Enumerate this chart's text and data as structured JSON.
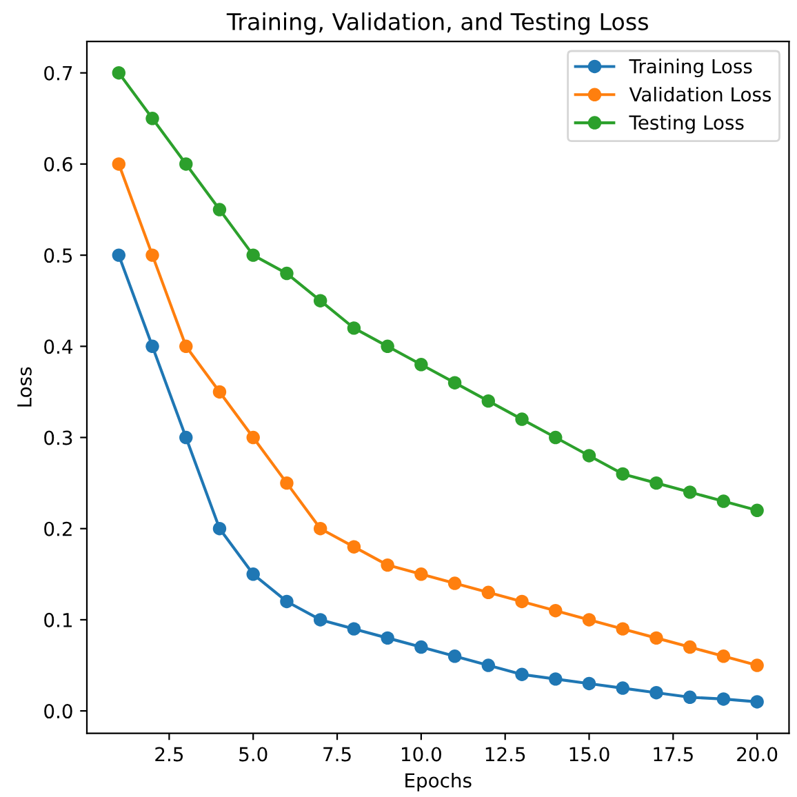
{
  "chart_data": {
    "type": "line",
    "title": "Training, Validation, and Testing Loss",
    "xlabel": "Epochs",
    "ylabel": "Loss",
    "x": [
      1,
      2,
      3,
      4,
      5,
      6,
      7,
      8,
      9,
      10,
      11,
      12,
      13,
      14,
      15,
      16,
      17,
      18,
      19,
      20
    ],
    "series": [
      {
        "name": "Training Loss",
        "color": "#1f77b4",
        "values": [
          0.5,
          0.4,
          0.3,
          0.2,
          0.15,
          0.12,
          0.1,
          0.09,
          0.08,
          0.07,
          0.06,
          0.05,
          0.04,
          0.035,
          0.03,
          0.025,
          0.02,
          0.015,
          0.013,
          0.01
        ]
      },
      {
        "name": "Validation Loss",
        "color": "#ff7f0e",
        "values": [
          0.6,
          0.5,
          0.4,
          0.35,
          0.3,
          0.25,
          0.2,
          0.18,
          0.16,
          0.15,
          0.14,
          0.13,
          0.12,
          0.11,
          0.1,
          0.09,
          0.08,
          0.07,
          0.06,
          0.05
        ]
      },
      {
        "name": "Testing Loss",
        "color": "#2ca02c",
        "values": [
          0.7,
          0.65,
          0.6,
          0.55,
          0.5,
          0.48,
          0.45,
          0.42,
          0.4,
          0.38,
          0.36,
          0.34,
          0.32,
          0.3,
          0.28,
          0.26,
          0.25,
          0.24,
          0.23,
          0.22
        ]
      }
    ],
    "xlim": [
      0.05,
      20.95
    ],
    "xticks": [
      {
        "value": 2.5,
        "label": "2.5"
      },
      {
        "value": 5,
        "label": "5.0"
      },
      {
        "value": 7.5,
        "label": "7.5"
      },
      {
        "value": 10,
        "label": "10.0"
      },
      {
        "value": 12.5,
        "label": "12.5"
      },
      {
        "value": 15,
        "label": "15.0"
      },
      {
        "value": 17.5,
        "label": "17.5"
      },
      {
        "value": 20,
        "label": "20.0"
      }
    ],
    "ylim": [
      -0.0245,
      0.7345
    ],
    "yticks": [
      {
        "value": 0,
        "label": "0.0"
      },
      {
        "value": 0.1,
        "label": "0.1"
      },
      {
        "value": 0.2,
        "label": "0.2"
      },
      {
        "value": 0.3,
        "label": "0.3"
      },
      {
        "value": 0.4,
        "label": "0.4"
      },
      {
        "value": 0.5,
        "label": "0.5"
      },
      {
        "value": 0.6,
        "label": "0.6"
      },
      {
        "value": 0.7,
        "label": "0.7"
      }
    ],
    "legend": "top right",
    "marker": "circle",
    "line_style": "solid",
    "grid": false
  }
}
